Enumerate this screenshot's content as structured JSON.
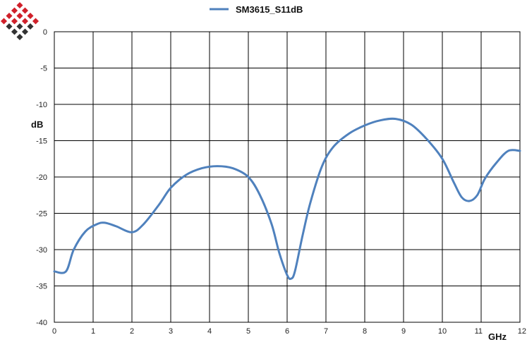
{
  "chart_data": {
    "type": "line",
    "title": "",
    "xlabel": "GHz",
    "ylabel": "dB",
    "xlim": [
      0,
      12
    ],
    "ylim": [
      -40,
      0
    ],
    "x_ticks": [
      0,
      1,
      2,
      3,
      4,
      5,
      6,
      7,
      8,
      9,
      10,
      11,
      12
    ],
    "y_ticks": [
      0,
      -5,
      -10,
      -15,
      -20,
      -25,
      -30,
      -35,
      -40
    ],
    "x_tick_labels": [
      "0",
      "1",
      "2",
      "3",
      "4",
      "5",
      "6",
      "7",
      "8",
      "9",
      "10",
      "11",
      "12"
    ],
    "y_tick_labels": [
      "0",
      "-5",
      "-10",
      "-15",
      "-20",
      "-25",
      "-30",
      "-35",
      "-40"
    ],
    "grid": true,
    "legend": "top-center",
    "series": [
      {
        "name": "SM3615_S11dB",
        "color": "#4f81bd",
        "x": [
          0,
          0.3,
          0.5,
          0.8,
          1.1,
          1.3,
          1.6,
          2.0,
          2.3,
          2.7,
          3.0,
          3.4,
          3.8,
          4.2,
          4.6,
          5.0,
          5.3,
          5.6,
          5.8,
          6.0,
          6.1,
          6.2,
          6.4,
          6.6,
          6.9,
          7.2,
          7.6,
          8.0,
          8.4,
          8.8,
          9.2,
          9.6,
          10.0,
          10.3,
          10.5,
          10.7,
          10.9,
          11.1,
          11.4,
          11.7,
          12.0
        ],
        "y": [
          -33,
          -33,
          -30,
          -27.5,
          -26.5,
          -26.3,
          -26.8,
          -27.6,
          -26.5,
          -23.8,
          -21.5,
          -19.7,
          -18.8,
          -18.5,
          -18.8,
          -20.0,
          -22.5,
          -26.5,
          -30.5,
          -33.5,
          -34.0,
          -33.0,
          -28.0,
          -23.5,
          -18.5,
          -15.8,
          -14.0,
          -12.9,
          -12.2,
          -12.0,
          -12.8,
          -14.8,
          -17.5,
          -20.8,
          -22.8,
          -23.3,
          -22.5,
          -20.2,
          -18.0,
          -16.4,
          -16.4
        ]
      }
    ]
  },
  "legend": {
    "series_label": "SM3615_S11dB",
    "line_color": "#4f81bd"
  },
  "logo": {
    "icon": "diamond-grid-logo",
    "color_red": "#d0202a",
    "color_dark": "#333333"
  },
  "axes": {
    "y_unit": "dB",
    "x_unit": "GHz"
  }
}
